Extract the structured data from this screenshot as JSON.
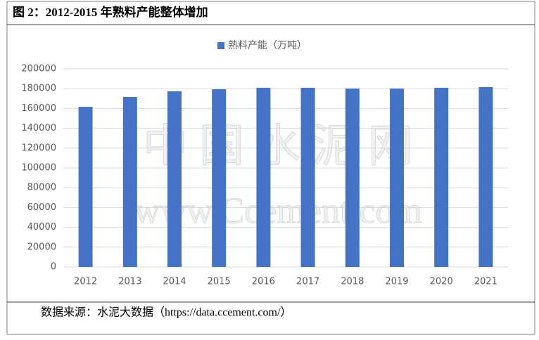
{
  "chart_data": {
    "type": "bar",
    "title": "图 2：2012-2015 年熟料产能整体增加",
    "source": "数据来源：水泥大数据（https://data.ccement.com/）",
    "watermark": [
      "中 国 水 泥 网",
      "www.Ccement.com"
    ],
    "categories": [
      "2012",
      "2013",
      "2014",
      "2015",
      "2016",
      "2017",
      "2018",
      "2019",
      "2020",
      "2021"
    ],
    "series": [
      {
        "name": "熟料产能（万吨）",
        "color": "#4472c4",
        "values": [
          161700,
          171600,
          177300,
          179400,
          180900,
          180900,
          180100,
          180100,
          180900,
          181600
        ]
      }
    ],
    "ylim": [
      0,
      200000
    ],
    "yticks": [
      0,
      20000,
      40000,
      60000,
      80000,
      100000,
      120000,
      140000,
      160000,
      180000,
      200000
    ],
    "grid": true,
    "legend": "top"
  }
}
